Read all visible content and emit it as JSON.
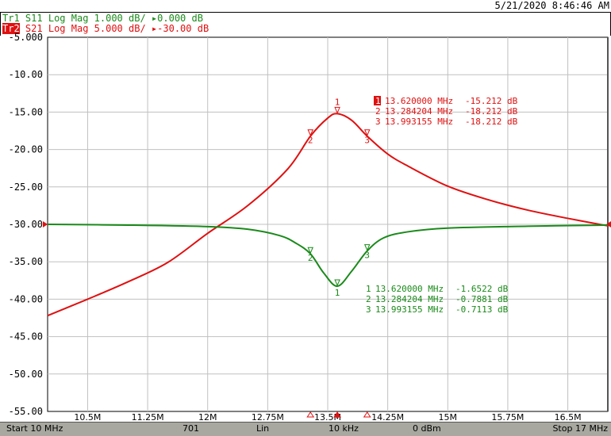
{
  "header": {
    "datetime": "5/21/2020 8:46:46 AM",
    "trace1": {
      "id": "Tr1",
      "param": "S11",
      "format": "Log Mag",
      "scale": "1.000 dB/",
      "ref": "▸0.000 dB",
      "color": "#1a8a1a"
    },
    "trace2": {
      "id": "Tr2",
      "param": "S21",
      "format": "Log Mag",
      "scale": "5.000 dB/",
      "ref": "▸-30.00 dB",
      "color": "#e01010",
      "active": true
    }
  },
  "status": {
    "start": "Start 10 MHz",
    "points": "701",
    "sweep": "Lin",
    "ifbw": "10 kHz",
    "power": "0 dBm",
    "stop": "Stop 17 MHz"
  },
  "chart_data": {
    "type": "line",
    "xlim": [
      10,
      17
    ],
    "ylim": [
      -55,
      -5
    ],
    "x_unit": "MHz",
    "grid": true,
    "y_ticks": [
      "-5.000",
      "-10.00",
      "-15.00",
      "-20.00",
      "-25.00",
      "-30.00",
      "-35.00",
      "-40.00",
      "-45.00",
      "-50.00",
      "-55.00"
    ],
    "y_tick_values": [
      -5,
      -10,
      -15,
      -20,
      -25,
      -30,
      -35,
      -40,
      -45,
      -50,
      -55
    ],
    "x_ticks": [
      "10.5M",
      "11.25M",
      "12M",
      "12.75M",
      "13.5M",
      "14.25M",
      "15M",
      "15.75M",
      "16.5M"
    ],
    "x_tick_values": [
      10.5,
      11.25,
      12,
      12.75,
      13.5,
      14.25,
      15,
      15.75,
      16.5
    ],
    "series": [
      {
        "name": "S21",
        "trace": "Tr2",
        "color": "#e01010",
        "scale_db_per_div": 5,
        "ref_db": -30,
        "x": [
          10,
          10.5,
          11,
          11.5,
          12,
          12.5,
          13,
          13.284204,
          13.5,
          13.62,
          13.8,
          13.993155,
          14.25,
          14.5,
          15,
          15.5,
          16,
          16.5,
          17
        ],
        "y": [
          -42.2,
          -40.0,
          -37.7,
          -35.1,
          -31.2,
          -27.5,
          -22.6,
          -18.212,
          -15.8,
          -15.212,
          -16.1,
          -18.212,
          -20.6,
          -22.2,
          -24.9,
          -26.7,
          -28.1,
          -29.2,
          -30.2
        ],
        "markers": [
          {
            "n": "1",
            "freq": "13.620000 MHz",
            "value": "-15.212 dB",
            "x": 13.62,
            "y": -15.212,
            "active": true
          },
          {
            "n": "2",
            "freq": "13.284204 MHz",
            "value": "-18.212 dB",
            "x": 13.284204,
            "y": -18.212
          },
          {
            "n": "3",
            "freq": "13.993155 MHz",
            "value": "-18.212 dB",
            "x": 13.993155,
            "y": -18.212
          }
        ]
      },
      {
        "name": "S11",
        "trace": "Tr1",
        "color": "#1a8a1a",
        "scale_db_per_div": 1,
        "ref_db": 0,
        "x": [
          10,
          11,
          12,
          12.5,
          12.9,
          13.1,
          13.284204,
          13.45,
          13.62,
          13.8,
          13.993155,
          14.2,
          14.5,
          15,
          16,
          17
        ],
        "y": [
          -0.0,
          -0.02,
          -0.06,
          -0.13,
          -0.3,
          -0.5,
          -0.7881,
          -1.3,
          -1.6522,
          -1.25,
          -0.7113,
          -0.36,
          -0.2,
          -0.1,
          -0.05,
          -0.02
        ],
        "markers": [
          {
            "n": "1",
            "freq": "13.620000 MHz",
            "value": "-1.6522 dB",
            "x": 13.62,
            "y": -1.6522
          },
          {
            "n": "2",
            "freq": "13.284204 MHz",
            "value": "-0.7881 dB",
            "x": 13.284204,
            "y": -0.7881
          },
          {
            "n": "3",
            "freq": "13.993155 MHz",
            "value": "-0.7113 dB",
            "x": 13.993155,
            "y": -0.7113
          }
        ]
      }
    ]
  }
}
